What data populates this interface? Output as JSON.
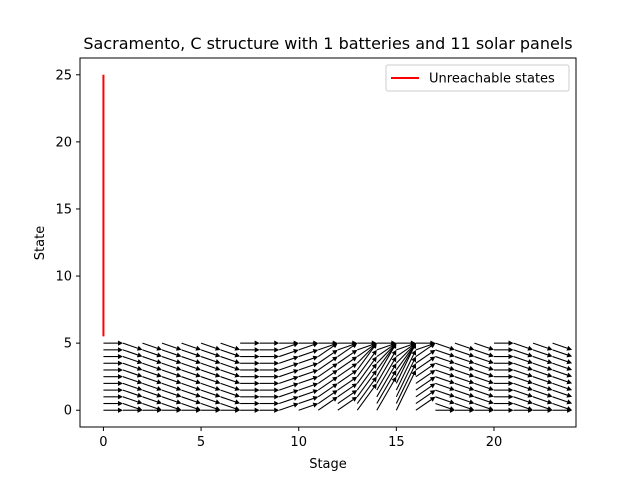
{
  "chart_data": {
    "type": "line",
    "title": "Sacramento, C structure with 1 batteries and 11 solar panels",
    "xlabel": "Stage",
    "ylabel": "State",
    "xlim": [
      -1.2,
      24.2
    ],
    "ylim": [
      -1.25,
      26.25
    ],
    "xticks": [
      0,
      5,
      10,
      15,
      20
    ],
    "yticks": [
      0,
      5,
      10,
      15,
      20,
      25
    ],
    "grid": false,
    "legend_position": "top-right",
    "colors": {
      "unreachable": "#ff0000",
      "arrows": "#000000"
    },
    "series": [
      {
        "name": "Unreachable states",
        "color": "#ff0000",
        "x": [
          0,
          0
        ],
        "y": [
          5.5,
          25
        ]
      }
    ],
    "transition_arrows": {
      "stages": [
        0,
        1,
        2,
        3,
        4,
        5,
        6,
        7,
        8,
        9,
        10,
        11,
        12,
        13,
        14,
        15,
        16,
        17,
        18,
        19,
        20,
        21,
        22,
        23
      ],
      "states": [
        0,
        0.5,
        1,
        1.5,
        2,
        2.5,
        3,
        3.5,
        4,
        4.5,
        5
      ],
      "next_state": [
        [
          0,
          0.5,
          1,
          1.5,
          2,
          2.5,
          3,
          3.5,
          4,
          4.5,
          5
        ],
        [
          0,
          0,
          0.5,
          1,
          1.5,
          2,
          2.5,
          3,
          3.5,
          4,
          4.5
        ],
        [
          0,
          0,
          0.5,
          1,
          1.5,
          2,
          2.5,
          3,
          3.5,
          4,
          4.5
        ],
        [
          0,
          0,
          0.5,
          1,
          1.5,
          2,
          2.5,
          3,
          3.5,
          4,
          4.5
        ],
        [
          0,
          0,
          0.5,
          1,
          1.5,
          2,
          2.5,
          3,
          3.5,
          4,
          4.5
        ],
        [
          0,
          0,
          0.5,
          1,
          1.5,
          2,
          2.5,
          3,
          3.5,
          4,
          4.5
        ],
        [
          0,
          0,
          0.5,
          1,
          1.5,
          2,
          2.5,
          3,
          3.5,
          4,
          4.5
        ],
        [
          0,
          0.5,
          1,
          1.5,
          2,
          2.5,
          3,
          3.5,
          4,
          4.5,
          5
        ],
        [
          0,
          0.5,
          1,
          1.5,
          2,
          2.5,
          3,
          3.5,
          4,
          4.5,
          5
        ],
        [
          0.5,
          1,
          1.5,
          2,
          2.5,
          3,
          3.5,
          4,
          4.5,
          5,
          5
        ],
        [
          0.5,
          1,
          1.5,
          2,
          2.5,
          3,
          3.5,
          4,
          4.5,
          5,
          5
        ],
        [
          1,
          1.5,
          2,
          2.5,
          3,
          3.5,
          4,
          4.5,
          5,
          5,
          5
        ],
        [
          1,
          1.5,
          2,
          2.5,
          3,
          3.5,
          4,
          4.5,
          5,
          5,
          5
        ],
        [
          2,
          2.5,
          3,
          3.5,
          4,
          4.5,
          5,
          5,
          5,
          5,
          5
        ],
        [
          2.5,
          3,
          3.5,
          4,
          4.5,
          5,
          5,
          5,
          5,
          5,
          5
        ],
        [
          3,
          3.5,
          4,
          4.5,
          5,
          5,
          5,
          5,
          5,
          5,
          5
        ],
        [
          1,
          1.5,
          2,
          2.5,
          3,
          3.5,
          4,
          4.5,
          5,
          5,
          5
        ],
        [
          0,
          0,
          0.5,
          1,
          1.5,
          2,
          2.5,
          3,
          3.5,
          4,
          4.5
        ],
        [
          0,
          0,
          0.5,
          1,
          1.5,
          2,
          2.5,
          3,
          3.5,
          4,
          4.5
        ],
        [
          0,
          0,
          0.5,
          1,
          1.5,
          2,
          2.5,
          3,
          3.5,
          4,
          4.5
        ],
        [
          0,
          0.5,
          1,
          1.5,
          2,
          2.5,
          3,
          3.5,
          4,
          4.5,
          5
        ],
        [
          0,
          0,
          0.5,
          1,
          1.5,
          2,
          2.5,
          3,
          3.5,
          4,
          4.5
        ],
        [
          0,
          0,
          0.5,
          1,
          1.5,
          2,
          2.5,
          3,
          3.5,
          4,
          4.5
        ],
        [
          0,
          0,
          0.5,
          1,
          1.5,
          2,
          2.5,
          3,
          3.5,
          4,
          4.5
        ]
      ]
    }
  }
}
